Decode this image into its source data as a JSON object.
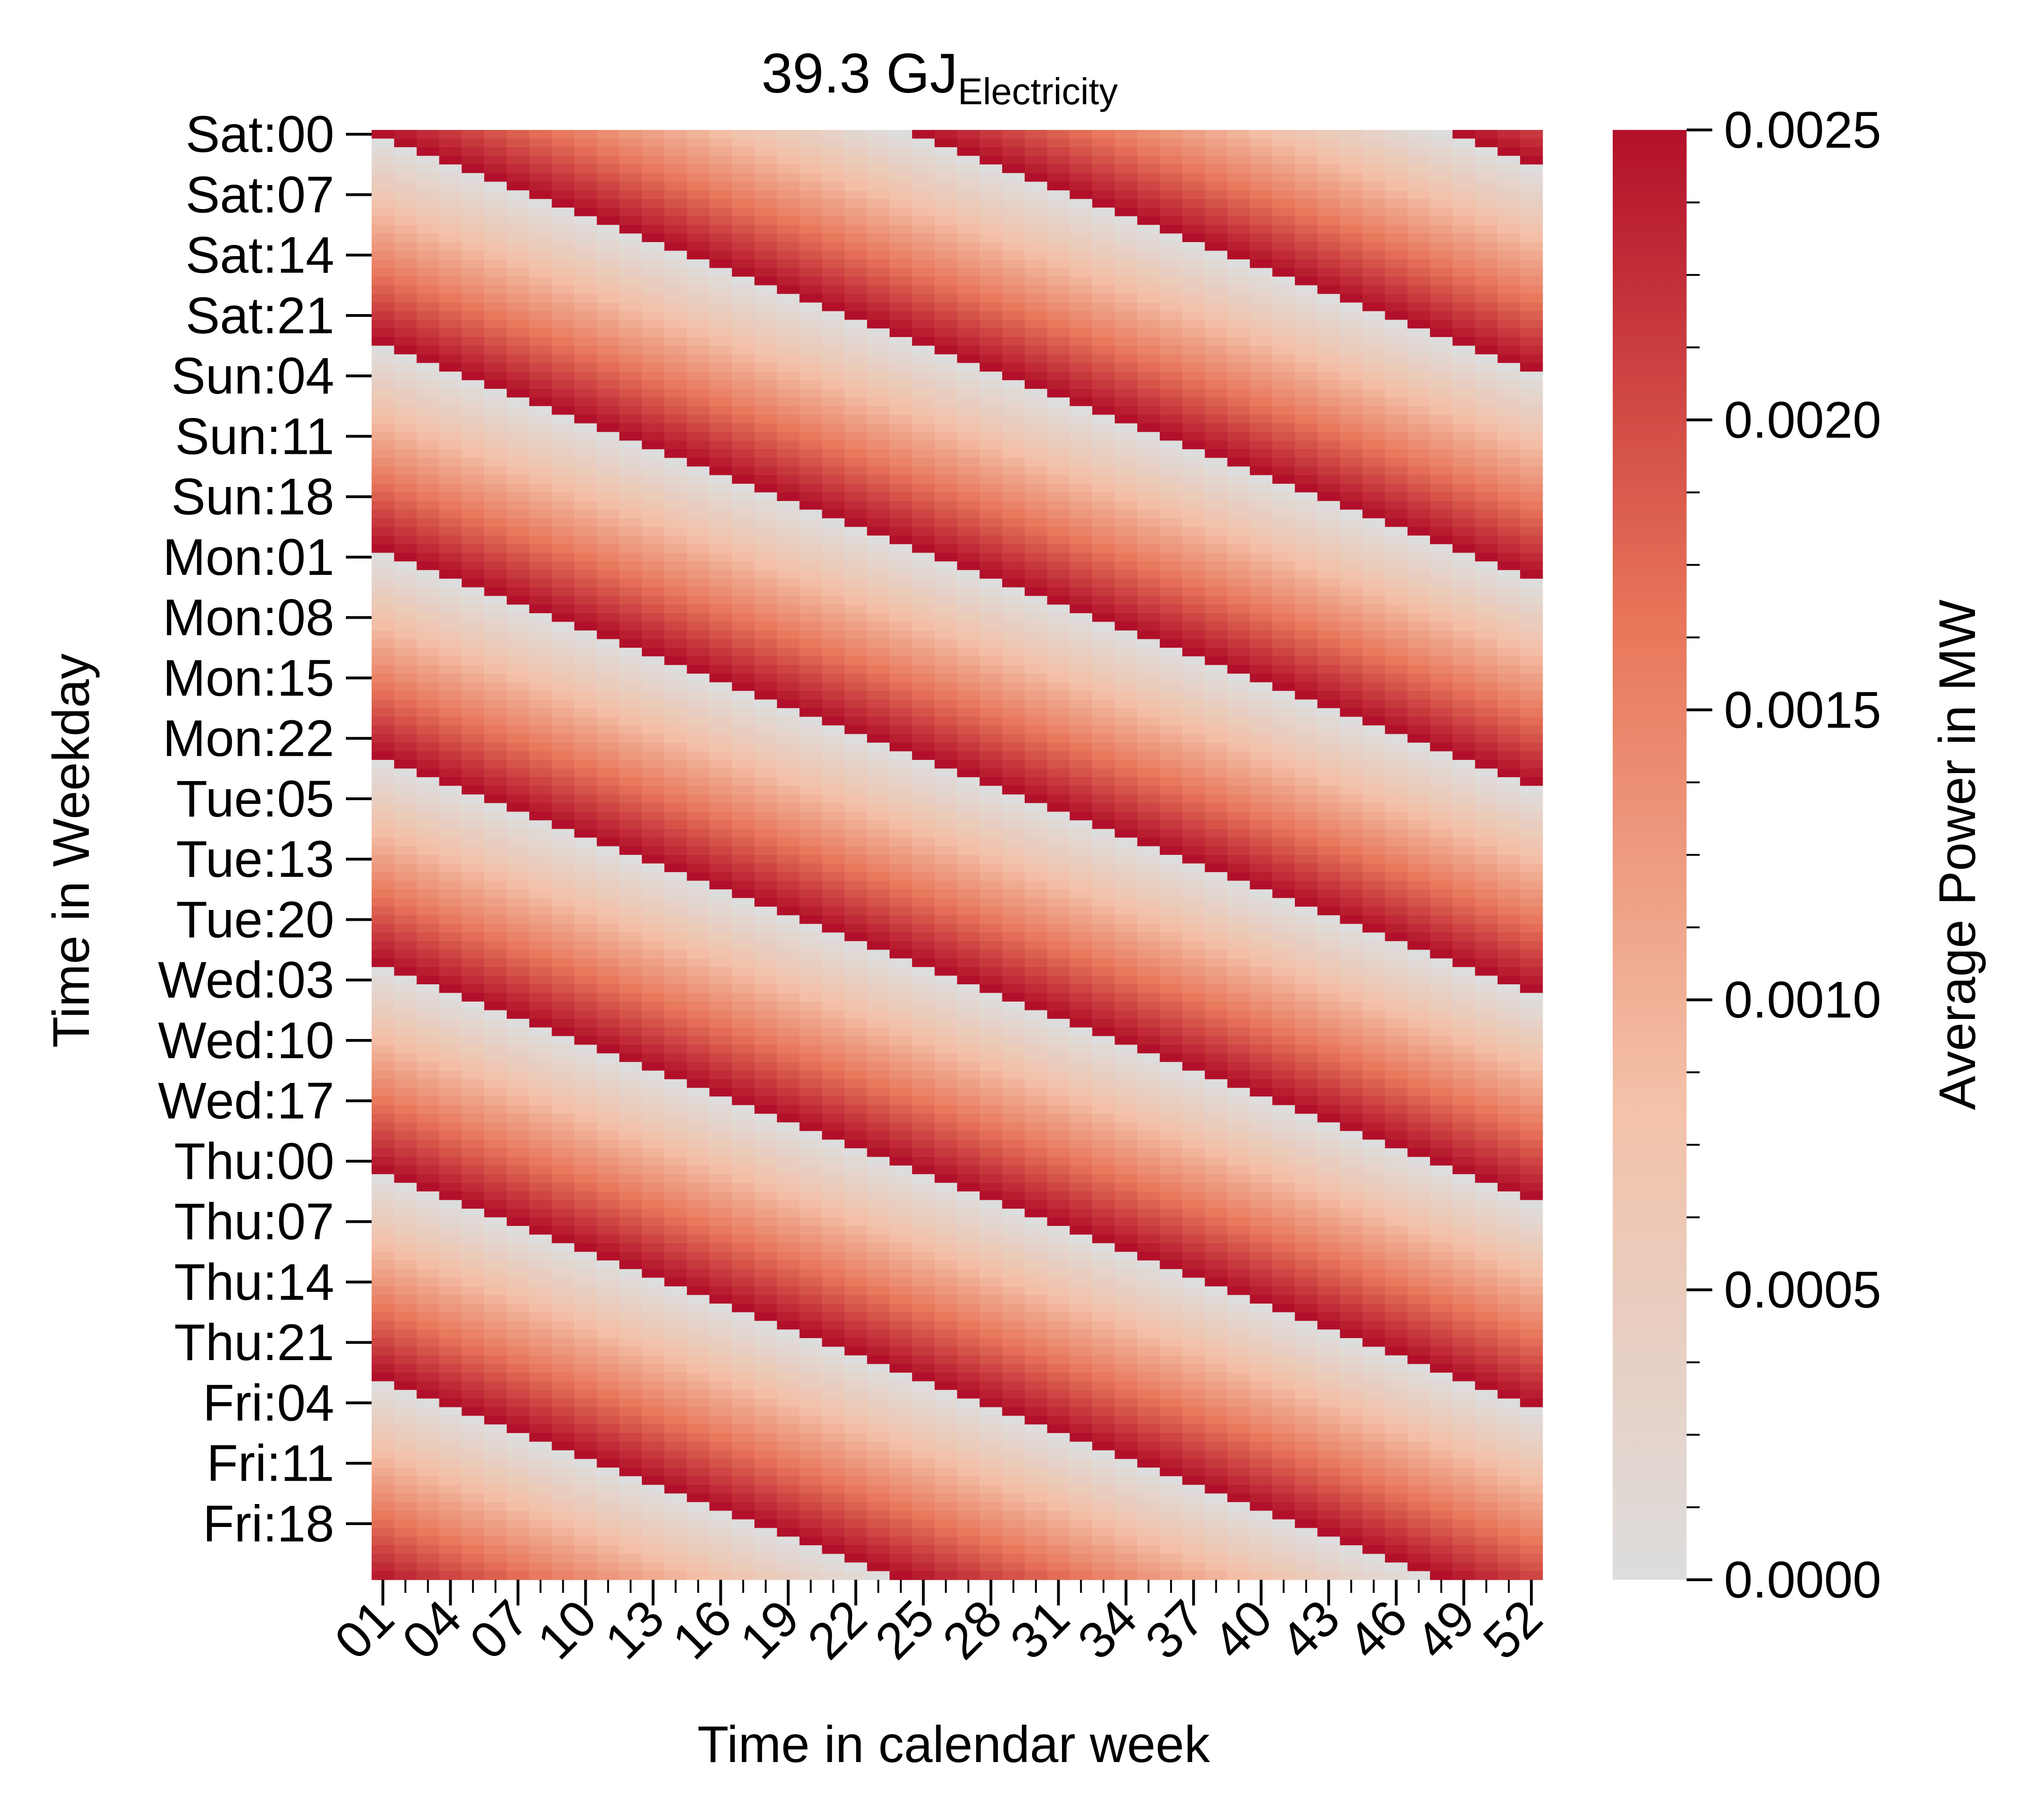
{
  "chart_data": {
    "type": "heatmap",
    "title": "39.3 GJ",
    "title_subscript": "Electricity",
    "xlabel": "Time in calendar week",
    "ylabel": "Time in Weekday",
    "x_tick_labels": [
      "01",
      "04",
      "07",
      "10",
      "13",
      "16",
      "19",
      "22",
      "25",
      "28",
      "31",
      "34",
      "37",
      "40",
      "43",
      "46",
      "49",
      "52"
    ],
    "y_tick_labels": [
      "Sat:00",
      "Sat:07",
      "Sat:14",
      "Sat:21",
      "Sun:04",
      "Sun:11",
      "Sun:18",
      "Mon:01",
      "Mon:08",
      "Mon:15",
      "Mon:22",
      "Tue:05",
      "Tue:13",
      "Tue:20",
      "Wed:03",
      "Wed:10",
      "Wed:17",
      "Thu:00",
      "Thu:07",
      "Thu:14",
      "Thu:21",
      "Fri:04",
      "Fri:11",
      "Fri:18"
    ],
    "columns": 52,
    "rows": 168,
    "pattern": {
      "description": "Diagonal stripes: each column's daily profile shifts by one hour per week",
      "period_hours": 24,
      "min_value": 0.0,
      "max_value": 0.0025,
      "shift_per_week_hours": 1
    },
    "colorbar": {
      "label": "Average Power in MW",
      "range": [
        0.0,
        0.0025
      ],
      "tick_labels": [
        "0.0000",
        "0.0005",
        "0.0010",
        "0.0015",
        "0.0020",
        "0.0025"
      ],
      "tick_values": [
        0.0,
        0.0005,
        0.001,
        0.0015,
        0.002,
        0.0025
      ],
      "colors": [
        "#dddddd",
        "#f3c1a8",
        "#e8765a",
        "#b2102a"
      ]
    }
  }
}
